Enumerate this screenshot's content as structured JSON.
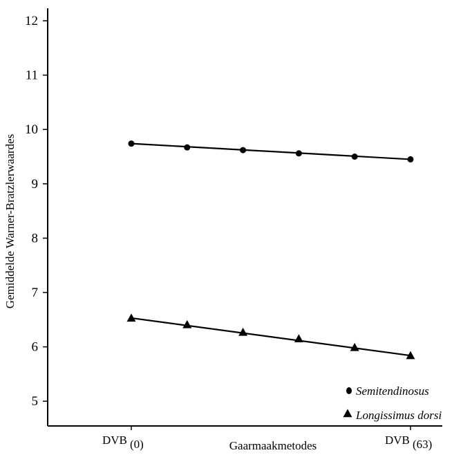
{
  "chart_data": {
    "type": "line",
    "ylabel": "Gemiddelde Warner-Bratzlerwaardes",
    "xlabel": "Gaarmaakmetodes",
    "ylim": [
      4.4,
      12.4
    ],
    "y_ticks": [
      "5",
      "6",
      "7",
      "8",
      "9",
      "10",
      "11",
      "12"
    ],
    "x_tick_labels": [
      {
        "base": "DVB",
        "sub": "(0)"
      },
      {
        "base": "DVB",
        "sub": "(63)"
      }
    ],
    "x": [
      0,
      1,
      2,
      3,
      4,
      5
    ],
    "grid": false,
    "legend_position": "bottom-right",
    "series": [
      {
        "name": "Semitendinosus",
        "marker": "circle",
        "values": [
          9.74,
          9.67,
          9.62,
          9.56,
          9.5,
          9.45
        ]
      },
      {
        "name": "Longissimus dorsi",
        "marker": "triangle",
        "values": [
          6.53,
          6.41,
          6.27,
          6.15,
          5.99,
          5.84
        ]
      }
    ]
  }
}
